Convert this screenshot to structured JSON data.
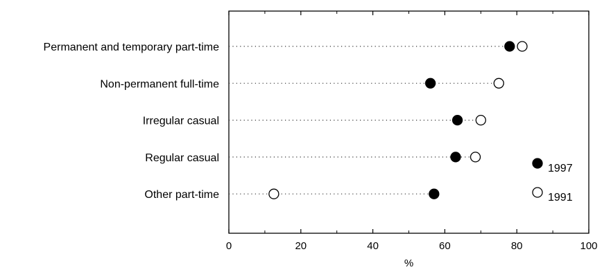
{
  "chart_data": {
    "type": "scatter",
    "title": "",
    "xlabel": "%",
    "ylabel": "",
    "xlim": [
      0,
      100
    ],
    "x_ticks": [
      0,
      20,
      40,
      60,
      80,
      100
    ],
    "categories": [
      "Permanent and temporary part-time",
      "Non-permanent full-time",
      "Irregular casual",
      "Regular casual",
      "Other part-time"
    ],
    "series": [
      {
        "name": "1997",
        "marker": "filled-circle",
        "color": "#000000",
        "values": [
          78,
          56,
          63.5,
          63,
          57
        ]
      },
      {
        "name": "1991",
        "marker": "open-circle",
        "color": "#000000",
        "values": [
          81.5,
          75,
          70,
          68.5,
          12.5
        ]
      }
    ],
    "grid": false,
    "legend_position": "right"
  }
}
